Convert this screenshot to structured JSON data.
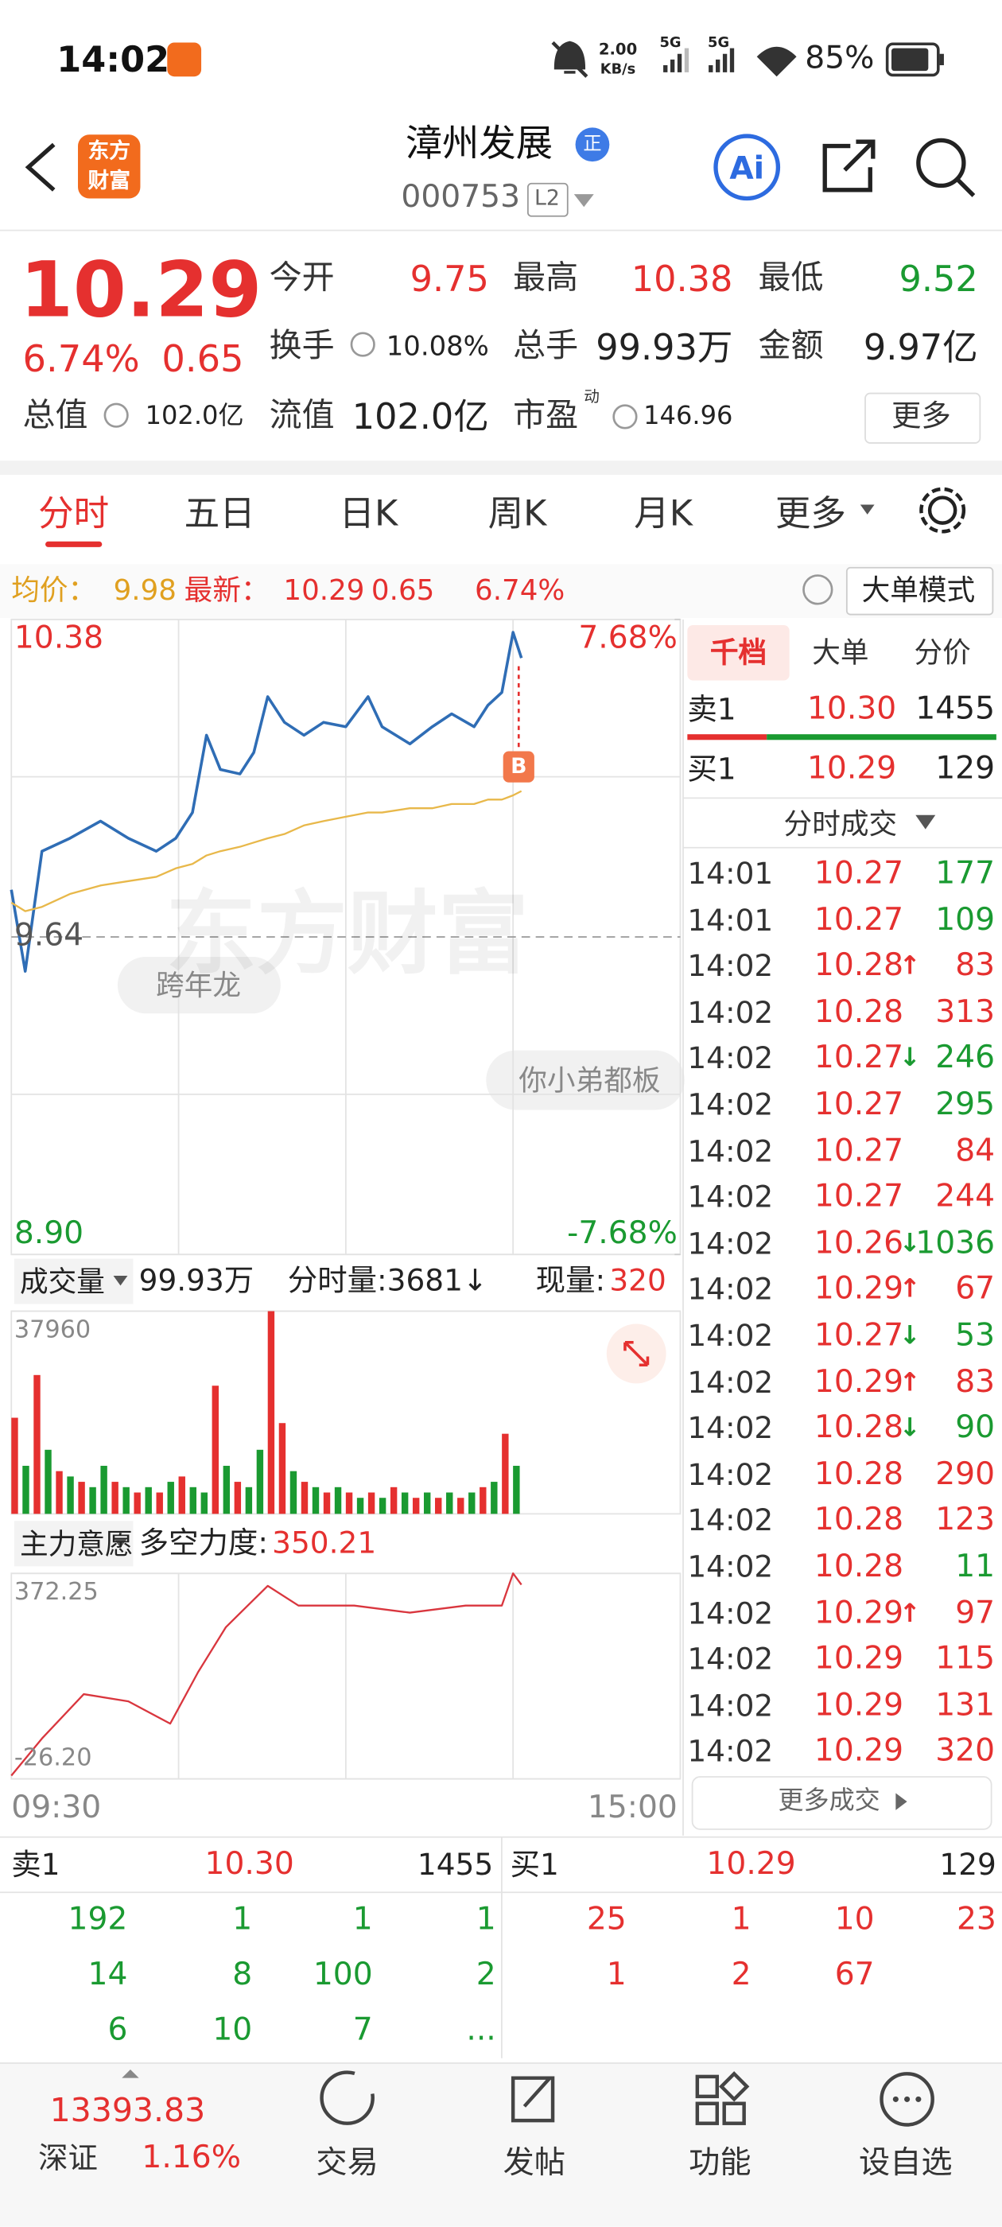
{
  "status_bar": {
    "time": "14:02",
    "net_speed": [
      "2.00",
      "KB/s"
    ],
    "network": [
      "5G",
      "5G"
    ],
    "battery": "85%"
  },
  "header": {
    "logo": [
      "东方",
      "财富"
    ],
    "title": "漳州发展",
    "badge": "正",
    "code": "000753",
    "level": "L2"
  },
  "quote": {
    "price": "10.29",
    "change_pct": "6.74%",
    "change": "0.65",
    "stats": [
      {
        "label": "今开",
        "value": "9.75",
        "color": "#e5302f"
      },
      {
        "label": "最高",
        "value": "10.38",
        "color": "#e5302f"
      },
      {
        "label": "最低",
        "value": "9.52",
        "color": "#1a9a31"
      },
      {
        "label": "换手",
        "value": "10.08%"
      },
      {
        "label": "总手",
        "value": "99.93万"
      },
      {
        "label": "金额",
        "value": "9.97亿"
      },
      {
        "label": "总值",
        "value": "102.0亿"
      },
      {
        "label": "流值",
        "value": "102.0亿"
      },
      {
        "label": "市盈",
        "sup": "动",
        "value": "146.96"
      }
    ],
    "more": "更多"
  },
  "tabs": [
    "分时",
    "五日",
    "日K",
    "周K",
    "月K",
    "更多"
  ],
  "info_bar": {
    "avg_label": "均价：",
    "avg": "9.98",
    "latest_label": "最新：",
    "latest": "10.29",
    "change": "0.65",
    "change_pct": "6.74%",
    "mode": "大单模式"
  },
  "price_chart": {
    "type": "line",
    "xlim": [
      0,
      240
    ],
    "x": [
      0,
      5,
      11,
      21,
      32,
      42,
      52,
      59,
      65,
      70,
      75,
      82,
      87,
      92,
      98,
      105,
      112,
      120,
      128,
      133,
      143,
      151,
      158,
      166,
      171,
      176,
      180,
      183
    ],
    "series": [
      {
        "color": "#2f6db5",
        "values": [
          9.75,
          9.56,
          9.84,
          9.87,
          9.91,
          9.87,
          9.84,
          9.87,
          9.93,
          10.11,
          10.03,
          10.02,
          10.07,
          10.2,
          10.14,
          10.11,
          10.14,
          10.13,
          10.2,
          10.13,
          10.09,
          10.13,
          10.16,
          10.13,
          10.18,
          10.21,
          10.35,
          10.29
        ]
      },
      {
        "color": "#e8b84a",
        "values": [
          9.72,
          9.7,
          9.71,
          9.74,
          9.76,
          9.77,
          9.78,
          9.8,
          9.81,
          9.83,
          9.84,
          9.85,
          9.86,
          9.87,
          9.88,
          9.9,
          9.91,
          9.92,
          9.93,
          9.93,
          9.94,
          9.94,
          9.95,
          9.95,
          9.96,
          9.96,
          9.97,
          9.98
        ]
      }
    ],
    "ylim": [
      8.9,
      10.38
    ],
    "yticks": [
      10.38,
      9.64,
      {
        "value": 8.9,
        "label": "8.90"
      }
    ],
    "y2lim": [
      -7.68,
      7.68
    ],
    "y2ticks": [
      {
        "value": 7.68,
        "label": "7.68%"
      },
      {
        "value": -7.68,
        "label": "-7.68%"
      }
    ],
    "marker": "B",
    "watermark": "东方财富",
    "bubbles": [
      "跨年龙",
      "你小弟都板"
    ]
  },
  "volume_header": {
    "label": "成交量",
    "total": "99.93万",
    "period": "分时量:3681↓",
    "current_label": "现量:",
    "current": "320"
  },
  "volume_chart": {
    "type": "bar",
    "xlim": [
      0,
      240
    ],
    "x": [
      0,
      4,
      8,
      12,
      16,
      20,
      24,
      28,
      32,
      36,
      40,
      44,
      48,
      52,
      56,
      60,
      64,
      68,
      72,
      76,
      80,
      84,
      88,
      92,
      96,
      100,
      104,
      108,
      112,
      116,
      120,
      124,
      128,
      132,
      136,
      140,
      144,
      148,
      152,
      156,
      160,
      164,
      168,
      172,
      176,
      180
    ],
    "values": [
      18000,
      9000,
      26000,
      12000,
      8000,
      7000,
      6000,
      5000,
      9000,
      6000,
      5000,
      4000,
      5000,
      4000,
      6000,
      7000,
      5000,
      4000,
      24000,
      9000,
      6000,
      5000,
      12000,
      37960,
      17000,
      8000,
      6000,
      5000,
      4000,
      5000,
      4000,
      3000,
      4000,
      3000,
      5000,
      4000,
      3000,
      4000,
      3000,
      4000,
      3000,
      4000,
      5000,
      6000,
      15000,
      9000
    ],
    "colors": [
      "#e5302f",
      "#1a9a31",
      "#e5302f",
      "#1a9a31",
      "#e5302f",
      "#1a9a31",
      "#e5302f",
      "#1a9a31",
      "#1a9a31",
      "#e5302f",
      "#1a9a31",
      "#e5302f",
      "#1a9a31",
      "#e5302f",
      "#1a9a31",
      "#e5302f",
      "#1a9a31",
      "#1a9a31",
      "#e5302f",
      "#1a9a31",
      "#e5302f",
      "#1a9a31",
      "#1a9a31",
      "#e5302f",
      "#e5302f",
      "#1a9a31",
      "#e5302f",
      "#1a9a31",
      "#e5302f",
      "#1a9a31",
      "#e5302f",
      "#1a9a31",
      "#e5302f",
      "#1a9a31",
      "#e5302f",
      "#1a9a31",
      "#e5302f",
      "#1a9a31",
      "#e5302f",
      "#1a9a31",
      "#e5302f",
      "#1a9a31",
      "#e5302f",
      "#1a9a31",
      "#e5302f",
      "#1a9a31"
    ],
    "ylim": [
      0,
      37960
    ],
    "yticks": [
      37960
    ]
  },
  "force_header": {
    "label": "主力意愿",
    "strength_label": "多空力度:",
    "strength": "350.21"
  },
  "force_chart": {
    "type": "line",
    "xlim": [
      0,
      240
    ],
    "x": [
      0,
      11,
      26,
      42,
      57,
      67,
      77,
      92,
      103,
      123,
      143,
      163,
      176,
      180,
      183
    ],
    "values": [
      -20,
      52,
      138,
      124,
      81,
      181,
      268,
      348,
      310,
      310,
      296,
      310,
      310,
      372.25,
      350.21
    ],
    "color": "#d9363e",
    "ylim": [
      -26.2,
      372.25
    ],
    "yticks": [
      372.25,
      {
        "value": -26.2,
        "label": "-26.20"
      }
    ]
  },
  "time_axis": [
    "09:30",
    "15:00"
  ],
  "side_panel": {
    "tabs": [
      "千档",
      "大单",
      "分价"
    ],
    "ask": {
      "label": "卖1",
      "price": "10.30",
      "volume": 1455
    },
    "bid": {
      "label": "买1",
      "price": "10.29",
      "volume": 129
    },
    "trades_title": "分时成交",
    "trades": [
      {
        "time": "14:01",
        "price": "10.27",
        "volume": 177,
        "color": "#1a9a31"
      },
      {
        "time": "14:01",
        "price": "10.27",
        "volume": 109,
        "color": "#1a9a31"
      },
      {
        "time": "14:02",
        "price": "10.28",
        "arrow": "↑",
        "volume": 83,
        "color": "#e5302f"
      },
      {
        "time": "14:02",
        "price": "10.28",
        "volume": 313,
        "color": "#e5302f"
      },
      {
        "time": "14:02",
        "price": "10.27",
        "arrow": "↓",
        "volume": 246,
        "color": "#1a9a31"
      },
      {
        "time": "14:02",
        "price": "10.27",
        "volume": 295,
        "color": "#1a9a31"
      },
      {
        "time": "14:02",
        "price": "10.27",
        "volume": 84,
        "color": "#e5302f"
      },
      {
        "time": "14:02",
        "price": "10.27",
        "volume": 244,
        "color": "#e5302f"
      },
      {
        "time": "14:02",
        "price": "10.26",
        "arrow": "↓",
        "volume": 1036,
        "color": "#1a9a31"
      },
      {
        "time": "14:02",
        "price": "10.29",
        "arrow": "↑",
        "volume": 67,
        "color": "#e5302f"
      },
      {
        "time": "14:02",
        "price": "10.27",
        "arrow": "↓",
        "volume": 53,
        "color": "#1a9a31"
      },
      {
        "time": "14:02",
        "price": "10.29",
        "arrow": "↑",
        "volume": 83,
        "color": "#e5302f"
      },
      {
        "time": "14:02",
        "price": "10.28",
        "arrow": "↓",
        "volume": 90,
        "color": "#1a9a31"
      },
      {
        "time": "14:02",
        "price": "10.28",
        "volume": 290,
        "color": "#e5302f"
      },
      {
        "time": "14:02",
        "price": "10.28",
        "volume": 123,
        "color": "#e5302f"
      },
      {
        "time": "14:02",
        "price": "10.28",
        "volume": 11,
        "color": "#1a9a31"
      },
      {
        "time": "14:02",
        "price": "10.29",
        "arrow": "↑",
        "volume": 97,
        "color": "#e5302f"
      },
      {
        "time": "14:02",
        "price": "10.29",
        "volume": 115,
        "color": "#e5302f"
      },
      {
        "time": "14:02",
        "price": "10.29",
        "volume": 131,
        "color": "#e5302f"
      },
      {
        "time": "14:02",
        "price": "10.29",
        "volume": 320,
        "color": "#e5302f"
      }
    ],
    "more": "更多成交"
  },
  "order_book": {
    "ask": {
      "label": "卖1",
      "price": "10.30",
      "volume": 1455
    },
    "bid": {
      "label": "买1",
      "price": "10.29",
      "volume": 129
    },
    "ask_queue": [
      [
        192,
        1,
        1,
        1
      ],
      [
        14,
        8,
        100,
        2
      ],
      [
        6,
        10,
        7,
        "..."
      ]
    ],
    "bid_queue": [
      [
        25,
        1,
        10,
        23
      ],
      [
        1,
        2,
        67
      ]
    ]
  },
  "nav": {
    "index": {
      "value": "13393.83",
      "name": "深证",
      "change": "1.16%"
    },
    "items": [
      "交易",
      "发帖",
      "功能",
      "设自选"
    ]
  }
}
